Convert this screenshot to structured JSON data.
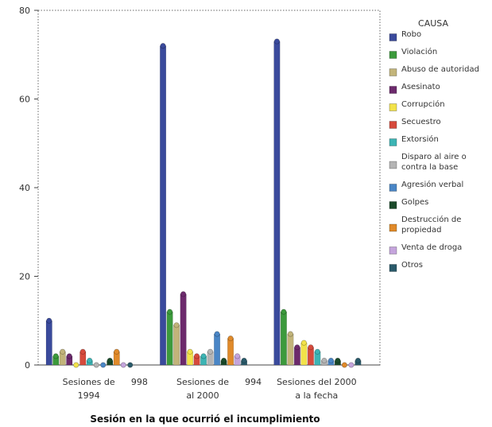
{
  "chart_data": {
    "type": "bar",
    "title": "",
    "xlabel": "Sesión en la que ocurrió el incumplimiento",
    "ylabel": "",
    "ylim": [
      0,
      80
    ],
    "yticks": [
      0,
      20,
      40,
      60,
      80
    ],
    "grid": false,
    "legend_position": "right",
    "legend_title": "CAUSA",
    "categories": [
      [
        "Sesiones de",
        "1994"
      ],
      [
        "Sesiones de",
        "al 2000"
      ],
      [
        "Sesiones del 2000",
        "a la fecha"
      ]
    ],
    "stray_labels": [
      {
        "text": "998",
        "category_index": 0
      },
      {
        "text": "994",
        "category_index": 1
      }
    ],
    "series": [
      {
        "name": "Robo",
        "color": "#3a4a9c",
        "values": [
          10,
          72,
          73
        ]
      },
      {
        "name": "Violación",
        "color": "#3c9a3c",
        "values": [
          2,
          12,
          12
        ]
      },
      {
        "name": "Abuso de autoridad",
        "color": "#c2b47a",
        "values": [
          3,
          9,
          7
        ]
      },
      {
        "name": "Asesinato",
        "color": "#6c2a6c",
        "values": [
          2,
          16,
          4
        ]
      },
      {
        "name": "Corrupción",
        "color": "#f2e24a",
        "values": [
          0,
          3,
          5
        ]
      },
      {
        "name": "Secuestro",
        "color": "#d64a3c",
        "values": [
          3,
          2,
          4
        ]
      },
      {
        "name": "Extorsión",
        "color": "#3cb4b4",
        "values": [
          1,
          2,
          3
        ]
      },
      {
        "name": "Disparo al aire o contra la base",
        "color": "#b4b4b4",
        "values": [
          0,
          3,
          1
        ]
      },
      {
        "name": "Agresión verbal",
        "color": "#4a86c6",
        "values": [
          0,
          7,
          1
        ]
      },
      {
        "name": "Golpes",
        "color": "#1a4a2a",
        "values": [
          1,
          1,
          1
        ]
      },
      {
        "name": "Destrucción de propiedad",
        "color": "#e08a2a",
        "values": [
          3,
          6,
          0
        ]
      },
      {
        "name": "Venta de droga",
        "color": "#c4a4dc",
        "values": [
          0,
          2,
          0
        ]
      },
      {
        "name": "Otros",
        "color": "#2a5a6a",
        "values": [
          0,
          1,
          1
        ]
      }
    ]
  }
}
